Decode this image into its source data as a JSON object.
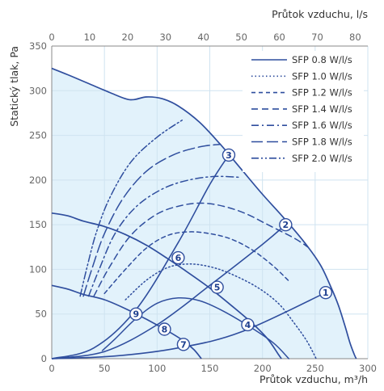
{
  "chart_data": {
    "type": "line",
    "xlabel": "Průtok vzduchu, m³/h",
    "x2label": "Průtok vzduchu, l/s",
    "ylabel": "Statický tlak, Pa",
    "xlim": [
      0,
      300
    ],
    "x2lim": [
      0,
      83.33
    ],
    "ylim": [
      0,
      350
    ],
    "xticks": [
      "0",
      "50",
      "100",
      "150",
      "200",
      "250",
      "300"
    ],
    "x2ticks": [
      "0",
      "10",
      "20",
      "30",
      "40",
      "50",
      "60",
      "70",
      "80"
    ],
    "yticks": [
      "0",
      "50",
      "100",
      "150",
      "200",
      "250",
      "300",
      "350"
    ],
    "grid": true,
    "legend_position": "top-right",
    "colors": {
      "curve": "#2f4e9e",
      "fill": "#e2f2fb",
      "grid": "#cfe3f0",
      "marker_fill": "#ffffff"
    },
    "legend": [
      {
        "label": "SFP 0.8 W/l/s",
        "dash": "solid"
      },
      {
        "label": "SFP 1.0 W/l/s",
        "dash": "dotted"
      },
      {
        "label": "SFP 1.2 W/l/s",
        "dash": "dash-short"
      },
      {
        "label": "SFP 1.4 W/l/s",
        "dash": "dash-medium"
      },
      {
        "label": "SFP 1.6 W/l/s",
        "dash": "dash-dot"
      },
      {
        "label": "SFP 1.8 W/l/s",
        "dash": "dash-long"
      },
      {
        "label": "SFP 2.0 W/l/s",
        "dash": "dash-dot-dot"
      }
    ],
    "envelope": [
      [
        0,
        325
      ],
      [
        15,
        318
      ],
      [
        35,
        308
      ],
      [
        55,
        298
      ],
      [
        70,
        291
      ],
      [
        78,
        290
      ],
      [
        90,
        293
      ],
      [
        105,
        291
      ],
      [
        120,
        283
      ],
      [
        140,
        265
      ],
      [
        160,
        240
      ],
      [
        180,
        212
      ],
      [
        200,
        184
      ],
      [
        220,
        158
      ],
      [
        240,
        130
      ],
      [
        255,
        105
      ],
      [
        265,
        80
      ],
      [
        272,
        60
      ],
      [
        278,
        38
      ],
      [
        283,
        18
      ],
      [
        287,
        5
      ],
      [
        289,
        0
      ]
    ],
    "fan_curves": [
      {
        "id": "top",
        "points": [
          [
            0,
            325
          ],
          [
            15,
            318
          ],
          [
            35,
            308
          ],
          [
            55,
            298
          ],
          [
            70,
            291
          ],
          [
            78,
            290
          ],
          [
            90,
            293
          ],
          [
            105,
            291
          ],
          [
            120,
            283
          ],
          [
            140,
            265
          ],
          [
            160,
            240
          ],
          [
            180,
            212
          ],
          [
            200,
            184
          ],
          [
            220,
            158
          ],
          [
            240,
            130
          ],
          [
            255,
            105
          ],
          [
            265,
            80
          ],
          [
            272,
            60
          ],
          [
            278,
            38
          ],
          [
            283,
            18
          ],
          [
            287,
            5
          ],
          [
            289,
            0
          ]
        ]
      },
      {
        "id": "mid",
        "points": [
          [
            0,
            163
          ],
          [
            15,
            160
          ],
          [
            30,
            154
          ],
          [
            50,
            148
          ],
          [
            70,
            139
          ],
          [
            90,
            127
          ],
          [
            110,
            112
          ],
          [
            130,
            96
          ],
          [
            150,
            79
          ],
          [
            170,
            60
          ],
          [
            190,
            40
          ],
          [
            205,
            22
          ],
          [
            215,
            5
          ],
          [
            218,
            0
          ]
        ]
      },
      {
        "id": "low",
        "points": [
          [
            0,
            82
          ],
          [
            15,
            78
          ],
          [
            30,
            72
          ],
          [
            50,
            66
          ],
          [
            70,
            56
          ],
          [
            90,
            44
          ],
          [
            110,
            31
          ],
          [
            125,
            20
          ],
          [
            135,
            10
          ],
          [
            142,
            0
          ]
        ]
      }
    ],
    "system_curves": [
      {
        "id": "1",
        "points": [
          [
            0,
            0
          ],
          [
            60,
            3
          ],
          [
            120,
            12
          ],
          [
            180,
            30
          ],
          [
            260,
            74
          ]
        ]
      },
      {
        "id": "2",
        "points": [
          [
            0,
            0
          ],
          [
            50,
            8
          ],
          [
            100,
            38
          ],
          [
            150,
            82
          ],
          [
            200,
            128
          ],
          [
            222,
            150
          ]
        ]
      },
      {
        "id": "3",
        "points": [
          [
            0,
            0
          ],
          [
            40,
            12
          ],
          [
            80,
            55
          ],
          [
            120,
            130
          ],
          [
            150,
            195
          ],
          [
            168,
            228
          ]
        ]
      }
    ],
    "sfp_curves": [
      {
        "name": "SFP 0.8 W/l/s",
        "dash": "solid",
        "points": [
          [
            48,
            9
          ],
          [
            60,
            22
          ],
          [
            80,
            45
          ],
          [
            100,
            62
          ],
          [
            120,
            68
          ],
          [
            140,
            65
          ],
          [
            160,
            55
          ],
          [
            185,
            38
          ],
          [
            210,
            18
          ],
          [
            225,
            0
          ]
        ]
      },
      {
        "name": "SFP 1.0 W/l/s",
        "dash": "dotted",
        "points": [
          [
            70,
            66
          ],
          [
            90,
            88
          ],
          [
            110,
            102
          ],
          [
            130,
            106
          ],
          [
            150,
            103
          ],
          [
            170,
            95
          ],
          [
            195,
            80
          ],
          [
            215,
            62
          ],
          [
            230,
            40
          ],
          [
            242,
            20
          ],
          [
            251,
            0
          ]
        ]
      },
      {
        "name": "SFP 1.2 W/l/s",
        "dash": "dash-short",
        "points": [
          [
            50,
            73
          ],
          [
            70,
            100
          ],
          [
            90,
            124
          ],
          [
            110,
            138
          ],
          [
            130,
            142
          ],
          [
            150,
            140
          ],
          [
            170,
            134
          ],
          [
            190,
            122
          ],
          [
            210,
            104
          ],
          [
            225,
            87
          ]
        ]
      },
      {
        "name": "SFP 1.4 W/l/s",
        "dash": "dash-medium",
        "points": [
          [
            40,
            70
          ],
          [
            55,
            103
          ],
          [
            75,
            138
          ],
          [
            100,
            162
          ],
          [
            125,
            172
          ],
          [
            145,
            174
          ],
          [
            165,
            170
          ],
          [
            185,
            162
          ],
          [
            205,
            150
          ],
          [
            230,
            135
          ],
          [
            243,
            125
          ]
        ]
      },
      {
        "name": "SFP 1.6 W/l/s",
        "dash": "dash-dot",
        "points": [
          [
            35,
            70
          ],
          [
            45,
            100
          ],
          [
            60,
            140
          ],
          [
            80,
            170
          ],
          [
            105,
            190
          ],
          [
            130,
            200
          ],
          [
            155,
            204
          ],
          [
            180,
            203
          ]
        ]
      },
      {
        "name": "SFP 1.8 W/l/s",
        "dash": "dash-long",
        "points": [
          [
            30,
            70
          ],
          [
            38,
            100
          ],
          [
            50,
            140
          ],
          [
            68,
            180
          ],
          [
            90,
            210
          ],
          [
            115,
            228
          ],
          [
            140,
            237
          ],
          [
            160,
            240
          ]
        ]
      },
      {
        "name": "SFP 2.0 W/l/s",
        "dash": "dash-dot-dot",
        "points": [
          [
            27,
            70
          ],
          [
            33,
            100
          ],
          [
            42,
            140
          ],
          [
            55,
            180
          ],
          [
            75,
            220
          ],
          [
            100,
            248
          ],
          [
            125,
            268
          ]
        ]
      }
    ],
    "markers": [
      {
        "label": "1",
        "x": 260,
        "y": 74
      },
      {
        "label": "2",
        "x": 222,
        "y": 150
      },
      {
        "label": "3",
        "x": 168,
        "y": 228
      },
      {
        "label": "4",
        "x": 186,
        "y": 38
      },
      {
        "label": "5",
        "x": 157,
        "y": 80
      },
      {
        "label": "6",
        "x": 120,
        "y": 113
      },
      {
        "label": "7",
        "x": 125,
        "y": 16
      },
      {
        "label": "8",
        "x": 107,
        "y": 33
      },
      {
        "label": "9",
        "x": 80,
        "y": 50
      }
    ]
  }
}
